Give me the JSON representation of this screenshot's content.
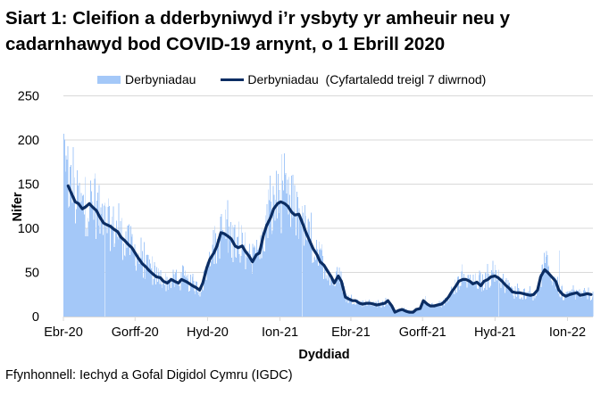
{
  "title": "Siart 1: Cleifion a dderbyniwyd i’r ysbyty yr amheuir neu y cadarnhawyd bod COVID-19 arnynt, o 1 Ebrill 2020",
  "legend": {
    "bars_label": "Derbyniadau",
    "line_label": "Derbyniadau  (Cyfartaledd treigl 7 diwrnod)"
  },
  "source": "Ffynhonnell: Iechyd a Gofal Digidol Cymru (IGDC)",
  "colors": {
    "bars": "#a4c8f8",
    "line": "#0b2d63",
    "grid": "#d9d9d9"
  },
  "chart_data": {
    "type": "bar",
    "title": "Siart 1: Cleifion a dderbyniwyd i’r ysbyty yr amheuir neu y cadarnhawyd bod COVID-19 arnynt, o 1 Ebrill 2020",
    "xlabel": "Dyddiad",
    "ylabel": "Nifer",
    "ylim": [
      0,
      250
    ],
    "yticks": [
      0,
      50,
      100,
      150,
      200,
      250
    ],
    "xticks": [
      "Ebr-20",
      "Gorff-20",
      "Hyd-20",
      "Ion-21",
      "Ebr-21",
      "Gorff-21",
      "Hyd-21",
      "Ion-22"
    ],
    "xtick_days": [
      0,
      91,
      183,
      275,
      365,
      456,
      548,
      640
    ],
    "grid": true,
    "legend_position": "top",
    "x_unit": "days since 1 Apr 2020",
    "series": [
      {
        "name": "Derbyniadau (Cyfartaledd treigl 7 diwrnod)",
        "kind": "line",
        "x_days": [
          6,
          10,
          15,
          19,
          24,
          28,
          33,
          37,
          42,
          46,
          51,
          55,
          60,
          64,
          69,
          73,
          78,
          82,
          87,
          91,
          96,
          100,
          105,
          109,
          114,
          118,
          123,
          127,
          132,
          137,
          141,
          146,
          150,
          155,
          159,
          164,
          168,
          173,
          177,
          182,
          186,
          191,
          195,
          200,
          204,
          209,
          213,
          218,
          222,
          227,
          231,
          236,
          240,
          245,
          249,
          254,
          258,
          263,
          267,
          272,
          276,
          281,
          285,
          290,
          294,
          299,
          304,
          308,
          313,
          317,
          322,
          326,
          331,
          335,
          340,
          344,
          349,
          353,
          358,
          362,
          367,
          371,
          376,
          380,
          385,
          389,
          394,
          398,
          403,
          408,
          412,
          417,
          421,
          426,
          430,
          435,
          439,
          444,
          448,
          453,
          457,
          462,
          466,
          471,
          475,
          480,
          484,
          489,
          493,
          498,
          502,
          507,
          511,
          516,
          520,
          525,
          530,
          534,
          539,
          543,
          548,
          552,
          557,
          561,
          566,
          570,
          575,
          579,
          584,
          588,
          593,
          597,
          602,
          606,
          611,
          615,
          620,
          625,
          629,
          634,
          638,
          643,
          647,
          652,
          656,
          661,
          665,
          670
        ],
        "values": [
          148,
          140,
          130,
          128,
          122,
          124,
          128,
          124,
          120,
          113,
          106,
          104,
          102,
          99,
          96,
          90,
          86,
          82,
          78,
          72,
          65,
          60,
          56,
          52,
          48,
          45,
          44,
          40,
          38,
          42,
          40,
          38,
          42,
          40,
          38,
          35,
          33,
          30,
          38,
          55,
          65,
          72,
          80,
          95,
          94,
          91,
          88,
          80,
          78,
          80,
          74,
          68,
          62,
          70,
          72,
          92,
          103,
          112,
          122,
          128,
          130,
          128,
          125,
          118,
          115,
          116,
          105,
          95,
          85,
          77,
          70,
          62,
          58,
          52,
          45,
          38,
          46,
          40,
          22,
          20,
          18,
          18,
          15,
          14,
          15,
          15,
          14,
          13,
          14,
          15,
          18,
          12,
          5,
          7,
          8,
          6,
          5,
          5,
          8,
          9,
          18,
          14,
          12,
          12,
          13,
          14,
          17,
          22,
          28,
          34,
          40,
          42,
          42,
          40,
          37,
          39,
          35,
          40,
          42,
          45,
          46,
          44,
          40,
          36,
          32,
          28,
          27,
          27,
          26,
          25,
          24,
          25,
          30,
          45,
          53,
          50,
          45,
          40,
          30,
          25,
          23,
          25,
          26,
          27,
          24,
          25,
          26,
          25
        ]
      },
      {
        "name": "Derbyniadau",
        "kind": "bar",
        "note": "daily admissions; fluctuate around 7-day average, notable spikes ~207 (1 Apr 2020), ~165 (Jan 2021), ~75 (Jan 2022)",
        "peaks": [
          {
            "day": 0,
            "value": 207
          },
          {
            "day": 5,
            "value": 193
          },
          {
            "day": 270,
            "value": 165
          },
          {
            "day": 629,
            "value": 75
          }
        ]
      }
    ]
  }
}
